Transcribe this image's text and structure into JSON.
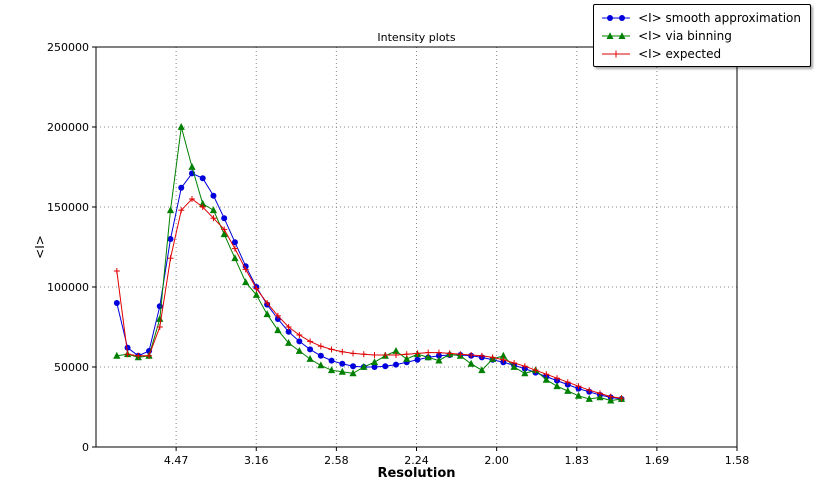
{
  "chart_data": {
    "type": "line",
    "title": "Intensity plots",
    "xlabel": "Resolution",
    "ylabel": "<I>",
    "grid": "dotted",
    "legend_position": "top-right, outside axes",
    "x_scale": "inverse_d_squared (tick labels are d-spacing in Angstrom)",
    "x_axis": {
      "range_inv_d_sq": [
        0.0,
        0.4
      ],
      "tick_positions_inv_d_sq": [
        0.05,
        0.1,
        0.15,
        0.2,
        0.25,
        0.3,
        0.35,
        0.4
      ],
      "tick_labels": [
        "4.47",
        "3.16",
        "2.58",
        "2.24",
        "2.00",
        "1.83",
        "1.69",
        "1.58"
      ]
    },
    "y_axis": {
      "range": [
        0,
        250000
      ],
      "ticks": [
        0,
        50000,
        100000,
        150000,
        200000,
        250000
      ]
    },
    "x_inv_d_sq": [
      0.013,
      0.0197,
      0.0264,
      0.0331,
      0.0398,
      0.0465,
      0.0532,
      0.0599,
      0.0666,
      0.0733,
      0.08,
      0.0867,
      0.0934,
      0.1001,
      0.1068,
      0.1135,
      0.1202,
      0.1269,
      0.1336,
      0.1403,
      0.147,
      0.1537,
      0.1604,
      0.1671,
      0.1738,
      0.1805,
      0.1872,
      0.1939,
      0.2006,
      0.2073,
      0.214,
      0.2207,
      0.2274,
      0.2341,
      0.2408,
      0.2475,
      0.2542,
      0.2609,
      0.2676,
      0.2743,
      0.281,
      0.2877,
      0.2944,
      0.3011,
      0.3078,
      0.3145,
      0.3212,
      0.3279
    ],
    "series": [
      {
        "name": "<I> smooth approximation",
        "color": "#0000dd",
        "marker": "circle",
        "values": [
          90000,
          62000,
          57000,
          60000,
          88000,
          130000,
          162000,
          171000,
          168000,
          157000,
          143000,
          128000,
          113000,
          100000,
          89000,
          80000,
          72000,
          66000,
          61000,
          57000,
          54000,
          52000,
          50500,
          50000,
          50000,
          50500,
          51500,
          53000,
          54500,
          56000,
          57000,
          57500,
          57500,
          57000,
          56000,
          54500,
          53000,
          51000,
          49000,
          46500,
          44000,
          41500,
          39000,
          36500,
          34500,
          32500,
          31000,
          30000
        ]
      },
      {
        "name": "<I> via binning",
        "color": "#008000",
        "marker": "triangle",
        "values": [
          57000,
          58000,
          56000,
          57000,
          80000,
          148000,
          200000,
          175000,
          152000,
          148000,
          133000,
          118000,
          103000,
          95000,
          83000,
          73000,
          65000,
          60000,
          55000,
          51000,
          48000,
          47000,
          46000,
          50000,
          53000,
          57000,
          60000,
          55000,
          58000,
          56000,
          54000,
          58000,
          57000,
          52000,
          48000,
          55000,
          57000,
          50000,
          46000,
          48000,
          42000,
          38000,
          35000,
          32000,
          30000,
          31000,
          29000,
          30000
        ]
      },
      {
        "name": "<I> expected",
        "color": "#e00000",
        "marker": "plus",
        "values": [
          110000,
          58000,
          57000,
          57000,
          75000,
          118000,
          148000,
          155000,
          150000,
          143000,
          136000,
          124000,
          111000,
          99000,
          90000,
          82000,
          75000,
          70000,
          66000,
          63000,
          61000,
          59500,
          58500,
          58000,
          57500,
          57500,
          57500,
          58000,
          58500,
          59000,
          59000,
          58500,
          58000,
          57500,
          57000,
          56000,
          54500,
          52500,
          50500,
          48000,
          45500,
          43000,
          40500,
          38000,
          35500,
          33500,
          31500,
          30500
        ]
      }
    ]
  }
}
